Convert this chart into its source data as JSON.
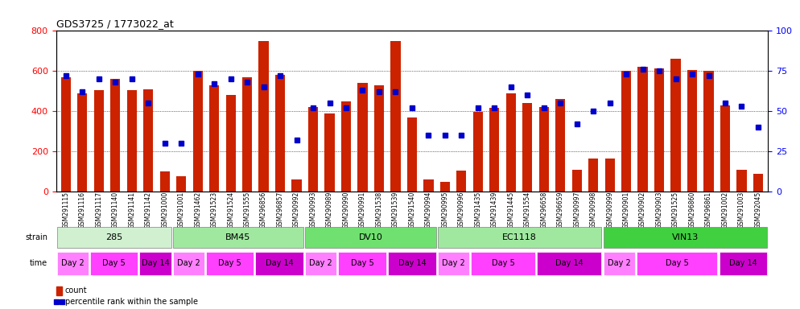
{
  "title": "GDS3725 / 1773022_at",
  "samples": [
    "GSM291115",
    "GSM291116",
    "GSM291117",
    "GSM291140",
    "GSM291141",
    "GSM291142",
    "GSM291000",
    "GSM291001",
    "GSM291462",
    "GSM291523",
    "GSM291524",
    "GSM291555",
    "GSM296856",
    "GSM296857",
    "GSM290992",
    "GSM290993",
    "GSM290989",
    "GSM290990",
    "GSM290991",
    "GSM291538",
    "GSM291539",
    "GSM291540",
    "GSM290994",
    "GSM290995",
    "GSM290996",
    "GSM291435",
    "GSM291439",
    "GSM291445",
    "GSM291554",
    "GSM296658",
    "GSM296659",
    "GSM290997",
    "GSM290998",
    "GSM290999",
    "GSM290901",
    "GSM290902",
    "GSM290903",
    "GSM291525",
    "GSM296860",
    "GSM296861",
    "GSM291002",
    "GSM291003",
    "GSM292045"
  ],
  "counts": [
    570,
    490,
    505,
    560,
    505,
    510,
    100,
    75,
    600,
    530,
    480,
    570,
    750,
    580,
    60,
    420,
    390,
    450,
    540,
    530,
    750,
    370,
    60,
    50,
    105,
    395,
    415,
    490,
    440,
    420,
    460,
    110,
    165,
    165,
    600,
    620,
    615,
    660,
    605,
    600,
    430,
    110,
    90
  ],
  "percentiles": [
    72,
    62,
    70,
    68,
    70,
    55,
    30,
    30,
    73,
    67,
    70,
    68,
    65,
    72,
    32,
    52,
    55,
    52,
    63,
    62,
    62,
    52,
    35,
    35,
    35,
    52,
    52,
    65,
    60,
    52,
    55,
    42,
    50,
    55,
    73,
    76,
    75,
    70,
    73,
    72,
    55,
    53,
    40
  ],
  "strains": [
    {
      "label": "285",
      "start": 0,
      "end": 7,
      "color": "#d0f0d0"
    },
    {
      "label": "BM45",
      "start": 7,
      "end": 15,
      "color": "#a0e8a0"
    },
    {
      "label": "DV10",
      "start": 15,
      "end": 23,
      "color": "#70e070"
    },
    {
      "label": "EC1118",
      "start": 23,
      "end": 33,
      "color": "#a0e8a0"
    },
    {
      "label": "VIN13",
      "start": 33,
      "end": 43,
      "color": "#40d040"
    }
  ],
  "time_groups": [
    {
      "label": "Day 2",
      "start": 0,
      "end": 2,
      "color": "#ff80ff"
    },
    {
      "label": "Day 5",
      "start": 2,
      "end": 5,
      "color": "#ff40ff"
    },
    {
      "label": "Day 14",
      "start": 5,
      "end": 7,
      "color": "#cc00cc"
    },
    {
      "label": "Day 2",
      "start": 7,
      "end": 9,
      "color": "#ff80ff"
    },
    {
      "label": "Day 5",
      "start": 9,
      "end": 12,
      "color": "#ff40ff"
    },
    {
      "label": "Day 14",
      "start": 12,
      "end": 15,
      "color": "#cc00cc"
    },
    {
      "label": "Day 2",
      "start": 15,
      "end": 17,
      "color": "#ff80ff"
    },
    {
      "label": "Day 5",
      "start": 17,
      "end": 20,
      "color": "#ff40ff"
    },
    {
      "label": "Day 14",
      "start": 20,
      "end": 23,
      "color": "#cc00cc"
    },
    {
      "label": "Day 2",
      "start": 23,
      "end": 25,
      "color": "#ff80ff"
    },
    {
      "label": "Day 5",
      "start": 25,
      "end": 29,
      "color": "#ff40ff"
    },
    {
      "label": "Day 14",
      "start": 29,
      "end": 33,
      "color": "#cc00cc"
    },
    {
      "label": "Day 2",
      "start": 33,
      "end": 35,
      "color": "#ff80ff"
    },
    {
      "label": "Day 5",
      "start": 35,
      "end": 40,
      "color": "#ff40ff"
    },
    {
      "label": "Day 14",
      "start": 40,
      "end": 43,
      "color": "#cc00cc"
    }
  ],
  "bar_color": "#cc2200",
  "dot_color": "#0000cc",
  "ylim_left": [
    0,
    800
  ],
  "ylim_right": [
    0,
    100
  ],
  "yticks_left": [
    0,
    200,
    400,
    600,
    800
  ],
  "yticks_right": [
    0,
    25,
    50,
    75,
    100
  ]
}
